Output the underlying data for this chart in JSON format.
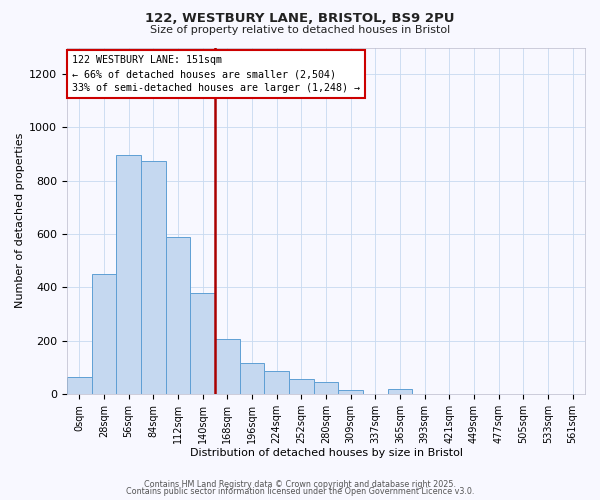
{
  "title": "122, WESTBURY LANE, BRISTOL, BS9 2PU",
  "subtitle": "Size of property relative to detached houses in Bristol",
  "xlabel": "Distribution of detached houses by size in Bristol",
  "ylabel": "Number of detached properties",
  "bar_labels": [
    "0sqm",
    "28sqm",
    "56sqm",
    "84sqm",
    "112sqm",
    "140sqm",
    "168sqm",
    "196sqm",
    "224sqm",
    "252sqm",
    "280sqm",
    "309sqm",
    "337sqm",
    "365sqm",
    "393sqm",
    "421sqm",
    "449sqm",
    "477sqm",
    "505sqm",
    "533sqm",
    "561sqm"
  ],
  "bar_values": [
    65,
    450,
    895,
    875,
    590,
    380,
    205,
    115,
    85,
    55,
    45,
    15,
    0,
    20,
    0,
    0,
    0,
    0,
    0,
    0,
    0
  ],
  "bar_color": "#c5d8f0",
  "bar_edge_color": "#5f9fd4",
  "vline_color": "#aa0000",
  "annotation_line1": "122 WESTBURY LANE: 151sqm",
  "annotation_line2": "← 66% of detached houses are smaller (2,504)",
  "annotation_line3": "33% of semi-detached houses are larger (1,248) →",
  "annotation_box_color": "#cc0000",
  "ylim_max": 1300,
  "yticks": [
    0,
    200,
    400,
    600,
    800,
    1000,
    1200
  ],
  "footer1": "Contains HM Land Registry data © Crown copyright and database right 2025.",
  "footer2": "Contains public sector information licensed under the Open Government Licence v3.0.",
  "bg_color": "#f8f8ff",
  "grid_color": "#c8daf0"
}
